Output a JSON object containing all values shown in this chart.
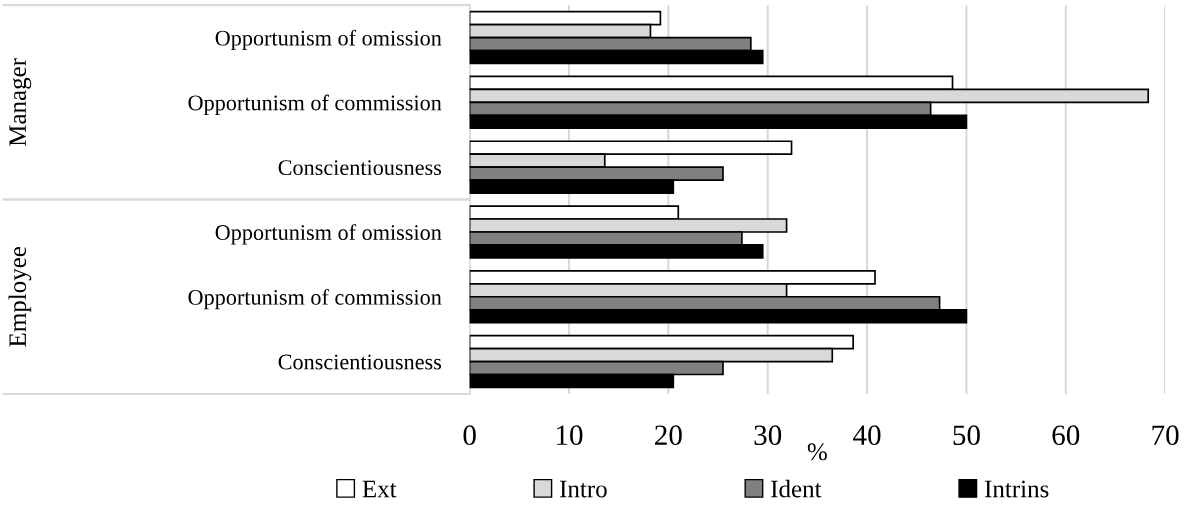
{
  "chart_data": {
    "type": "bar",
    "orientation": "horizontal",
    "categories": [
      "Opportunism of omission",
      "Opportunism of commission",
      "Conscientiousness",
      "Opportunism of omission",
      "Opportunism of commission",
      "Conscientiousness"
    ],
    "series": [
      {
        "name": "Ext",
        "color": "#ffffff",
        "values": [
          19.2,
          48.6,
          32.4,
          21.0,
          40.8,
          38.6
        ]
      },
      {
        "name": "Intro",
        "color": "#d9d9d9",
        "values": [
          18.2,
          68.3,
          13.6,
          31.9,
          31.9,
          36.5
        ]
      },
      {
        "name": "Ident",
        "color": "#808080",
        "values": [
          28.3,
          46.4,
          25.5,
          27.4,
          47.3,
          25.5
        ]
      },
      {
        "name": "Intrins",
        "color": "#000000",
        "values": [
          29.5,
          50.0,
          20.5,
          29.5,
          50.0,
          20.5
        ]
      }
    ],
    "annotations": [
      "Manager",
      "Employee"
    ],
    "xlabel": "%",
    "xlim": [
      0,
      70
    ],
    "xticks": [
      0,
      10,
      20,
      30,
      40,
      50,
      60,
      70
    ],
    "grid": "x",
    "legend": "bottom"
  }
}
